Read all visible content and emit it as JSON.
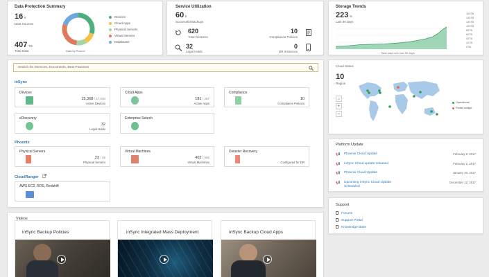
{
  "colors": {
    "accent": "#2a78b8",
    "green": "#4caf7d",
    "teal": "#4aa9a0",
    "orange": "#e07a5f",
    "yellow": "#f2c14e",
    "lightblue": "#6fa8dc",
    "page_bg": "#ececec"
  },
  "data_protection": {
    "title": "Data Protection Summary",
    "sources_value": "16",
    "sources_unit": "K",
    "sources_label": "Data Sources",
    "total_value": "407",
    "total_unit": "TB",
    "total_label": "Total Data",
    "donut_label": "Data by Source",
    "legend": [
      {
        "label": "Devices",
        "color": "#4caf7d",
        "fraction": 0.3
      },
      {
        "label": "Cloud Apps",
        "color": "#f2c14e",
        "fraction": 0.12
      },
      {
        "label": "Physical Servers",
        "color": "#a5d6a7",
        "fraction": 0.1
      },
      {
        "label": "Virtual Servers",
        "color": "#e07a5f",
        "fraction": 0.28
      },
      {
        "label": "Databases",
        "color": "#6fa8dc",
        "fraction": 0.2
      }
    ]
  },
  "service_util": {
    "title": "Service Utilization",
    "backups_value": "60",
    "backups_unit": "K",
    "backups_label": "Successful Backups",
    "restores_value": "620",
    "restores_label": "Total Restores",
    "policies_value": "10",
    "policies_label": "Compliance Policies",
    "holds_value": "32",
    "holds_label": "Legal Holds",
    "dr_value": "0",
    "dr_label": "DR Instances"
  },
  "storage_trends": {
    "title": "Storage Trends",
    "value": "223",
    "unit": "%",
    "period": "Last 90 days",
    "footer": "Total data over last 90 days",
    "axis_labels": [
      "160TB",
      "140TB",
      "120TB",
      "100TB",
      "80TB",
      "60TB",
      "40TB",
      "20TB",
      "0TB"
    ]
  },
  "search": {
    "placeholder": "Search for Services, Documents, Best Practices"
  },
  "insync": {
    "label": "inSync",
    "tiles": [
      {
        "title": "Devices",
        "value": "15,368",
        "max": "/ 17,030",
        "sub": "Active Devices"
      },
      {
        "title": "Cloud Apps",
        "value": "181",
        "max": "/ 257",
        "sub": "Active Apps"
      },
      {
        "title": "Compliance",
        "value": "10",
        "max": "",
        "sub": "Compliance Policies"
      },
      {
        "title": "eDiscovery",
        "value": "32",
        "max": "",
        "sub": "Legal Holds"
      },
      {
        "title": "Enterprise Search",
        "value": "",
        "max": "",
        "sub": ""
      }
    ]
  },
  "phoenix": {
    "label": "Phoenix",
    "tiles": [
      {
        "title": "Physical Servers",
        "value": "23",
        "max": "/ 35",
        "sub": "Physical Servers"
      },
      {
        "title": "Virtual Machines",
        "value": "402",
        "max": "/ 556",
        "sub": "Virtual Machines"
      },
      {
        "title": "Disaster Recovery",
        "value": "",
        "max": "",
        "sub": "Configured for DR"
      }
    ]
  },
  "cloudranger": {
    "label": "CloudRanger",
    "tile_title": "AWS EC2, RDS, Redshift"
  },
  "cloud_status": {
    "title": "Cloud Status",
    "regions_value": "10",
    "regions_label": "Region",
    "legend_operational": "Operational",
    "legend_partial": "Partial outage"
  },
  "platform_update": {
    "title": "Platform Update",
    "items": [
      {
        "text": "Phoenix Cloud Update",
        "date": "February 6, 2017"
      },
      {
        "text": "inSync Cloud update released",
        "date": "February 2, 2017"
      },
      {
        "text": "Phoenix Cloud Update",
        "date": "January 20, 2017"
      },
      {
        "text": "Upcoming inSync Cloud Update",
        "text2": "Scheduled",
        "date": "December 12, 2017"
      }
    ]
  },
  "support": {
    "title": "Support",
    "items": [
      "Forums",
      "Support Portal",
      "Knowledge Base"
    ]
  },
  "videos": {
    "title": "Videos",
    "items": [
      {
        "title": "inSync Backup Policies"
      },
      {
        "title": "inSync Integrated Mass Deployment"
      },
      {
        "title": "inSync Backup Cloud Apps"
      }
    ]
  }
}
